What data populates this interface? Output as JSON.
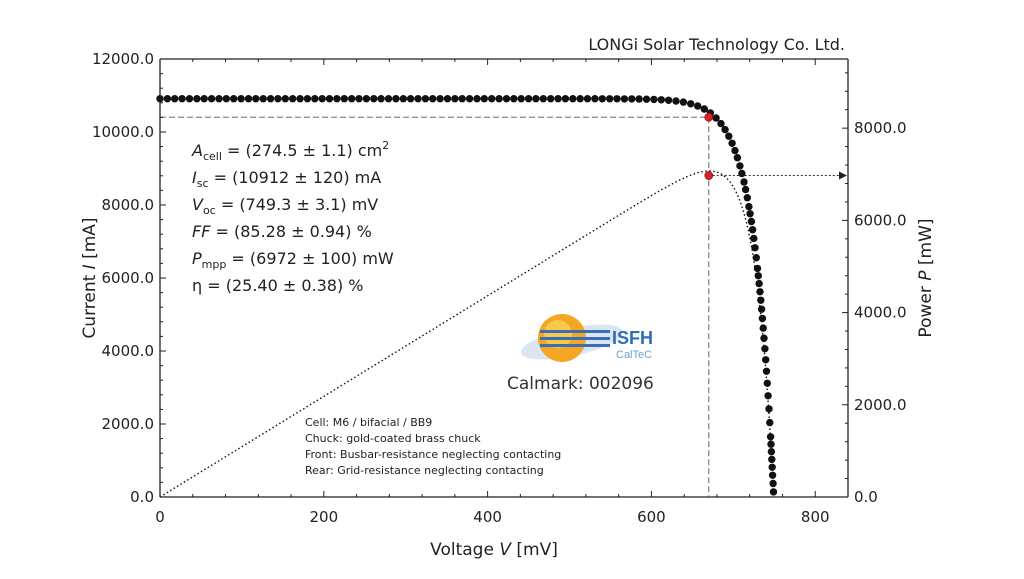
{
  "company": "LONGi Solar Technology Co. Ltd.",
  "logo": {
    "name": "ISFH",
    "sub": "CalTeC"
  },
  "calmark": "Calmark: 002096",
  "params": [
    {
      "sym": "A",
      "sub": "cell",
      "text": " = (274.5 ± 1.1) cm",
      "sup": "2"
    },
    {
      "sym": "I",
      "sub": "sc",
      "text": " = (10912 ± 120) mA",
      "sup": ""
    },
    {
      "sym": "V",
      "sub": "oc",
      "text": " = (749.3 ± 3.1) mV",
      "sup": ""
    },
    {
      "sym": "FF",
      "sub": "",
      "text": " = (85.28 ± 0.94) %",
      "sup": ""
    },
    {
      "sym": "P",
      "sub": "mpp",
      "text": " = (6972 ± 100) mW",
      "sup": ""
    },
    {
      "sym": "η",
      "sub": "",
      "text": " = (25.40 ± 0.38) %",
      "sup": "",
      "upright": true
    }
  ],
  "notes": [
    "Cell: M6 / bifacial / BB9",
    "Chuck: gold-coated brass chuck",
    "Front: Busbar-resistance neglecting contacting",
    "Rear: Grid-resistance neglecting contacting"
  ],
  "chart_data": {
    "type": "scatter",
    "xlabel": {
      "pre": "Voltage ",
      "sym": "V",
      "post": " [mV]"
    },
    "ylabel": {
      "pre": "Current ",
      "sym": "I",
      "post": " [mA]"
    },
    "y2label": {
      "pre": "Power ",
      "sym": "P",
      "post": " [mW]"
    },
    "xlim": [
      0,
      840
    ],
    "ylim": [
      0,
      12000
    ],
    "y2lim": [
      0,
      9500
    ],
    "x_ticks": [
      0,
      200,
      400,
      600,
      800
    ],
    "x_tick_labels": [
      "0",
      "200",
      "400",
      "600",
      "800"
    ],
    "y_ticks": [
      0,
      2000,
      4000,
      6000,
      8000,
      10000,
      12000
    ],
    "y_tick_labels": [
      "0.0",
      "2000.0",
      "4000.0",
      "6000.0",
      "8000.0",
      "10000.0",
      "12000.0"
    ],
    "y2_ticks": [
      0,
      2000,
      4000,
      6000,
      8000
    ],
    "y2_tick_labels": [
      "0.0",
      "2000.0",
      "4000.0",
      "6000.0",
      "8000.0"
    ],
    "series": [
      {
        "kind": "iv-curve",
        "style": "dots",
        "color": "#111111",
        "model": {
          "isc": 10912,
          "voc": 749.3,
          "vt": 23.2,
          "x_spacing": 9,
          "y_spacing": 330
        }
      },
      {
        "kind": "power-curve",
        "style": "dotted-line",
        "color": "#111111",
        "model": {
          "derived_from": "iv-curve",
          "p_equals_v_times_i_over": 1000
        }
      }
    ],
    "mpp": {
      "v": 670,
      "i": 10405,
      "p": 6972,
      "color": "#e02020"
    },
    "grid": false,
    "guide_color": "#8a8a8a"
  }
}
